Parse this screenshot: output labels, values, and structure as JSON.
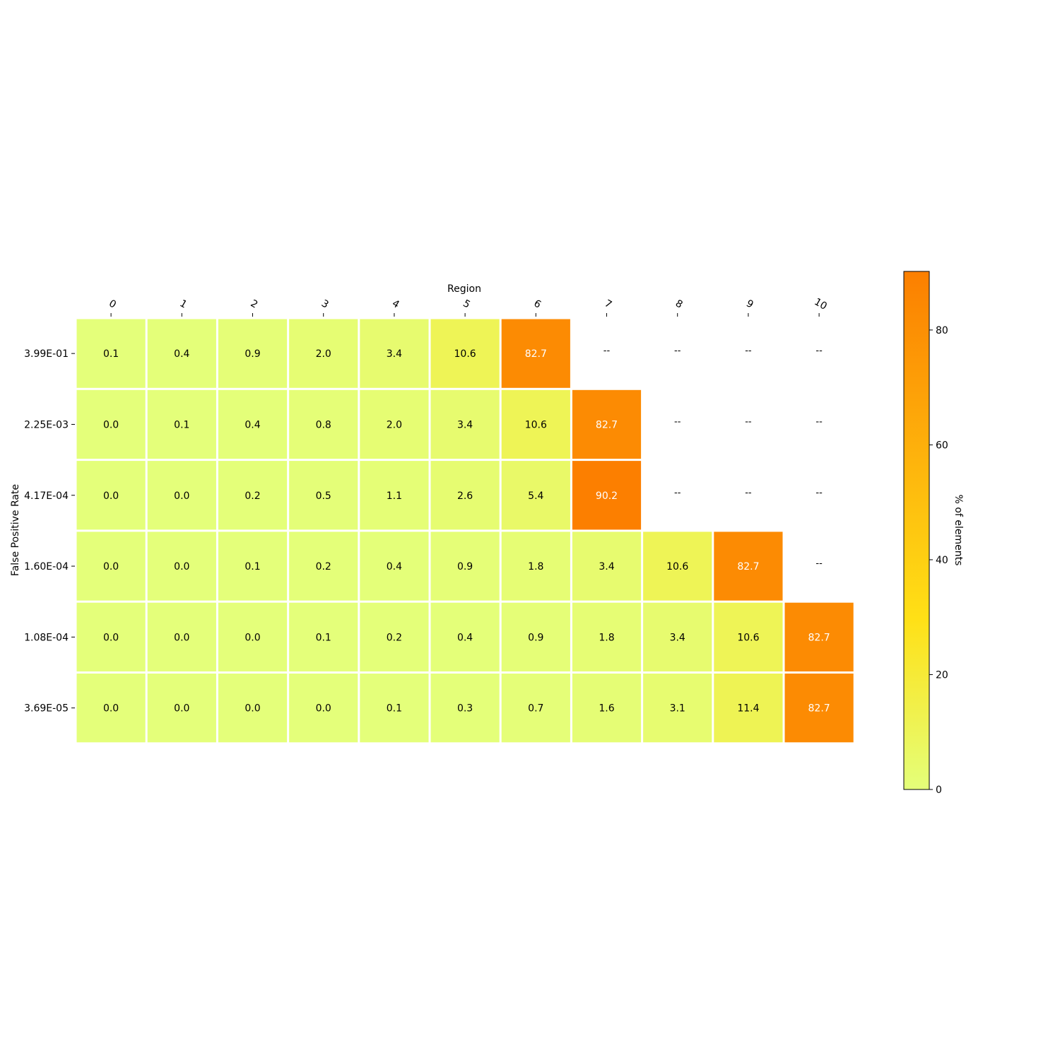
{
  "chart_data": {
    "type": "heatmap",
    "xlabel": "Region",
    "ylabel": "False Positive Rate",
    "colorbar_label": "% of elements",
    "x_categories": [
      "0",
      "1",
      "2",
      "3",
      "4",
      "5",
      "6",
      "7",
      "8",
      "9",
      "10"
    ],
    "y_categories": [
      "3.99E-01",
      "2.25E-03",
      "4.17E-04",
      "1.60E-04",
      "1.08E-04",
      "3.69E-05"
    ],
    "values": [
      [
        0.1,
        0.4,
        0.9,
        2.0,
        3.4,
        10.6,
        82.7,
        null,
        null,
        null,
        null
      ],
      [
        0.0,
        0.1,
        0.4,
        0.8,
        2.0,
        3.4,
        10.6,
        82.7,
        null,
        null,
        null
      ],
      [
        0.0,
        0.0,
        0.2,
        0.5,
        1.1,
        2.6,
        5.4,
        90.2,
        null,
        null,
        null
      ],
      [
        0.0,
        0.0,
        0.1,
        0.2,
        0.4,
        0.9,
        1.8,
        3.4,
        10.6,
        82.7,
        null
      ],
      [
        0.0,
        0.0,
        0.0,
        0.1,
        0.2,
        0.4,
        0.9,
        1.8,
        3.4,
        10.6,
        82.7
      ],
      [
        0.0,
        0.0,
        0.0,
        0.0,
        0.1,
        0.3,
        0.7,
        1.6,
        3.1,
        11.4,
        82.7
      ]
    ],
    "missing_label": "--",
    "value_format": "0.1",
    "colorbar_range": [
      0,
      90.2
    ],
    "colorbar_ticks": [
      "0",
      "20",
      "40",
      "60",
      "80"
    ],
    "colormap": {
      "low": "#e4ff7a",
      "mid": "#ffe016",
      "high": "#fc7f00"
    },
    "cell_gridlines": "white",
    "legend": "colorbar at right"
  }
}
